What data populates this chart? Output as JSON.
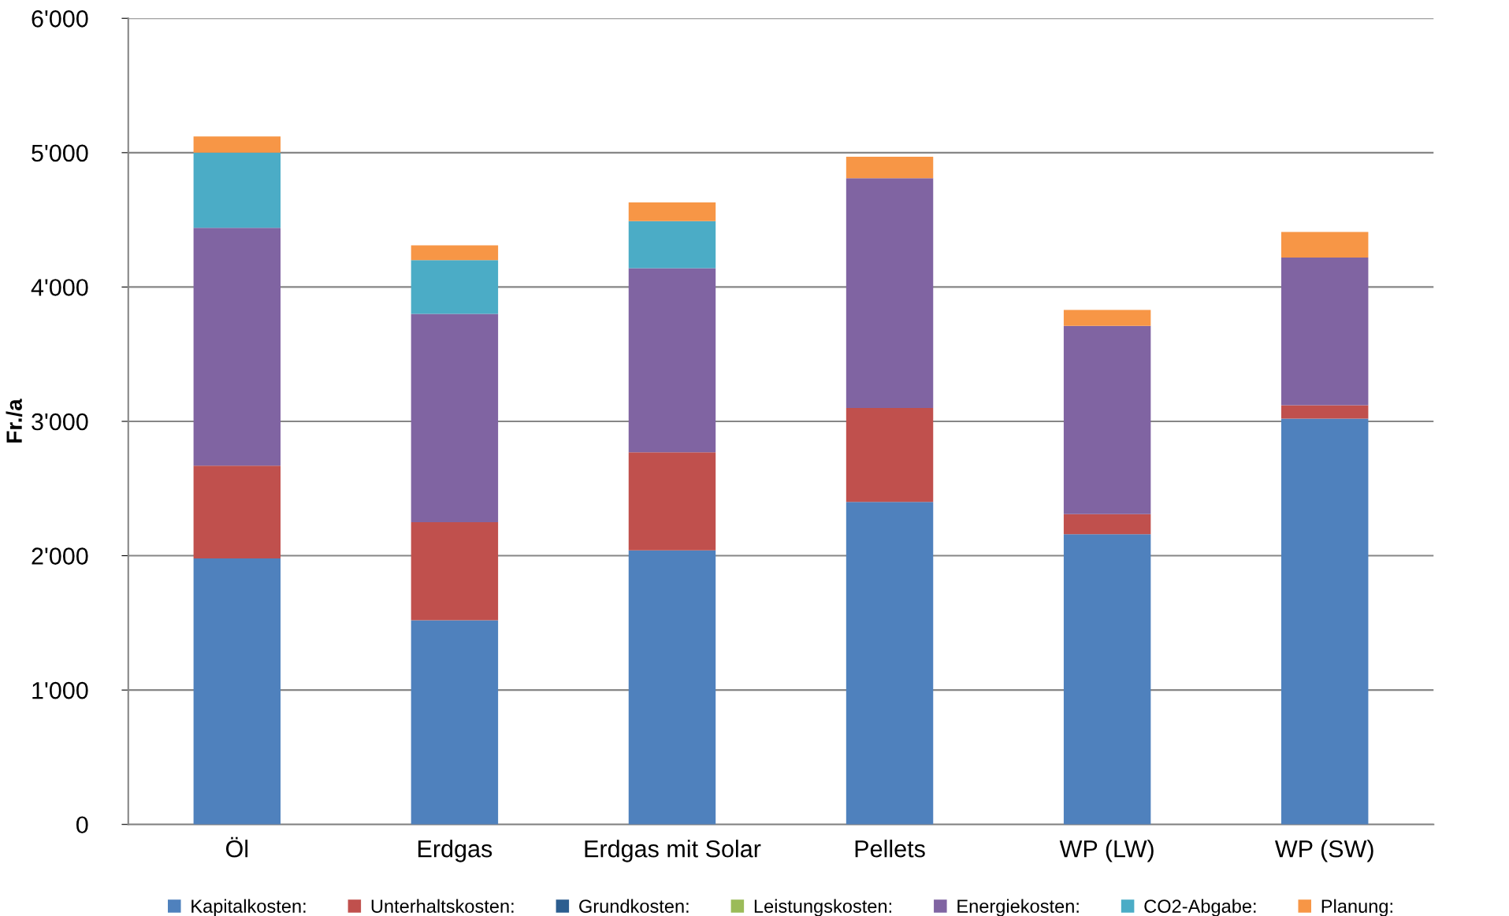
{
  "chart_data": {
    "type": "bar",
    "stacked": true,
    "ylabel": "Fr./a",
    "categories": [
      "Öl",
      "Erdgas",
      "Erdgas mit Solar",
      "Pellets",
      "WP (LW)",
      "WP (SW)"
    ],
    "series": [
      {
        "name": "Kapitalkosten:",
        "color": "#4f81bd",
        "values": [
          1980,
          1520,
          2040,
          2400,
          2160,
          3020
        ]
      },
      {
        "name": "Unterhaltskosten:",
        "color": "#c0504d",
        "values": [
          690,
          730,
          730,
          700,
          150,
          100
        ]
      },
      {
        "name": "Grundkosten:",
        "color": "#2c5d8f",
        "values": [
          0,
          0,
          0,
          0,
          0,
          0
        ]
      },
      {
        "name": "Leistungskosten:",
        "color": "#9bbb59",
        "values": [
          0,
          0,
          0,
          0,
          0,
          0
        ]
      },
      {
        "name": "Energiekosten:",
        "color": "#8064a2",
        "values": [
          1770,
          1550,
          1370,
          1710,
          1400,
          1100
        ]
      },
      {
        "name": "CO2-Abgabe:",
        "color": "#4bacc6",
        "values": [
          560,
          400,
          350,
          0,
          0,
          0
        ]
      },
      {
        "name": "Planung:",
        "color": "#f79646",
        "values": [
          120,
          110,
          140,
          160,
          120,
          190
        ]
      }
    ],
    "ylim": [
      0,
      6000
    ],
    "yticks": [
      0,
      {
        "value": 1000,
        "label": "1'000"
      },
      {
        "value": 2000,
        "label": "2'000"
      },
      {
        "value": 3000,
        "label": "3'000"
      },
      {
        "value": 4000,
        "label": "4'000"
      },
      {
        "value": 5000,
        "label": "5'000"
      },
      {
        "value": 6000,
        "label": "6'000"
      }
    ],
    "grid": "y",
    "legend": "bottom"
  }
}
